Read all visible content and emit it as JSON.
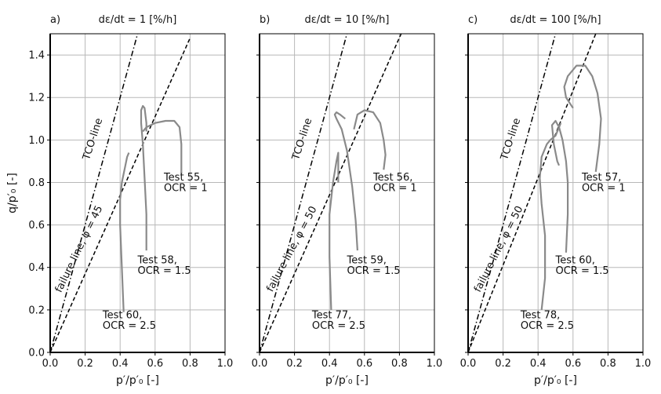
{
  "chart_data": [
    {
      "type": "line",
      "panel_label": "a)",
      "title": "dε/dt = 1 [%/h]",
      "xlabel": "p′/p′₀ [-]",
      "ylabel": "q/p′₀  [-]",
      "xlim": [
        0.0,
        1.0
      ],
      "ylim": [
        0.0,
        1.5
      ],
      "xticks": [
        "0.0",
        "0.2",
        "0.4",
        "0.6",
        "0.8",
        "1.0"
      ],
      "yticks": [
        "0.0",
        "0.2",
        "0.4",
        "0.6",
        "0.8",
        "1.0",
        "1.2",
        "1.4"
      ],
      "grid": true,
      "lines": [
        {
          "label": "TCO-line",
          "style": "dashdot",
          "x": [
            0.0,
            0.5
          ],
          "y": [
            0.0,
            1.5
          ]
        },
        {
          "label": "failure line, φ = 45",
          "style": "dashed",
          "x": [
            0.0,
            0.8
          ],
          "y": [
            0.0,
            1.48
          ]
        }
      ],
      "series": [
        {
          "name": "Test 55, OCR = 1",
          "x": [
            0.53,
            0.55,
            0.6,
            0.66,
            0.71,
            0.74,
            0.75,
            0.75,
            0.75
          ],
          "y": [
            1.04,
            1.06,
            1.08,
            1.09,
            1.09,
            1.06,
            0.98,
            0.9,
            0.84
          ]
        },
        {
          "name": "Test 58, OCR = 1.5",
          "x": [
            0.55,
            0.55,
            0.54,
            0.53,
            0.52,
            0.52,
            0.53,
            0.54,
            0.55,
            0.55
          ],
          "y": [
            0.48,
            0.65,
            0.82,
            0.98,
            1.08,
            1.14,
            1.16,
            1.15,
            1.08,
            1.04
          ]
        },
        {
          "name": "Test 60, OCR = 2.5",
          "x": [
            0.42,
            0.41,
            0.4,
            0.4,
            0.41,
            0.43,
            0.44,
            0.45
          ],
          "y": [
            0.19,
            0.4,
            0.6,
            0.72,
            0.8,
            0.88,
            0.92,
            0.94
          ]
        }
      ],
      "annotations": [
        {
          "text": "TCO-line",
          "x": 0.26,
          "y": 1.0,
          "rotation": -72
        },
        {
          "text": "failure line, φ = 45",
          "x": 0.18,
          "y": 0.48,
          "rotation": -64
        },
        {
          "text": "Test 55,",
          "x": 0.65,
          "y": 0.81
        },
        {
          "text": "OCR = 1",
          "x": 0.65,
          "y": 0.76
        },
        {
          "text": "Test 58,",
          "x": 0.5,
          "y": 0.42
        },
        {
          "text": "OCR = 1.5",
          "x": 0.5,
          "y": 0.37
        },
        {
          "text": "Test 60,",
          "x": 0.3,
          "y": 0.16
        },
        {
          "text": "OCR = 2.5",
          "x": 0.3,
          "y": 0.11
        }
      ]
    },
    {
      "type": "line",
      "panel_label": "b)",
      "title": "dε/dt = 10 [%/h]",
      "xlabel": "p′/p′₀ [-]",
      "ylabel": "",
      "xlim": [
        0.0,
        1.0
      ],
      "ylim": [
        0.0,
        1.5
      ],
      "xticks": [
        "0.0",
        "0.2",
        "0.4",
        "0.6",
        "0.8",
        "1.0"
      ],
      "yticks": [],
      "grid": true,
      "lines": [
        {
          "label": "TCO-line",
          "style": "dashdot",
          "x": [
            0.0,
            0.5
          ],
          "y": [
            0.0,
            1.5
          ]
        },
        {
          "label": "failure line, φ = 50",
          "style": "dashed",
          "x": [
            0.0,
            0.81
          ],
          "y": [
            0.0,
            1.5
          ]
        }
      ],
      "series": [
        {
          "name": "Test 56, OCR = 1",
          "x": [
            0.54,
            0.56,
            0.6,
            0.65,
            0.69,
            0.71,
            0.72,
            0.71
          ],
          "y": [
            1.05,
            1.12,
            1.14,
            1.13,
            1.08,
            1.0,
            0.93,
            0.86
          ]
        },
        {
          "name": "Test 59, OCR = 1.5",
          "x": [
            0.56,
            0.55,
            0.53,
            0.5,
            0.47,
            0.44,
            0.43,
            0.44,
            0.46,
            0.49
          ],
          "y": [
            0.48,
            0.62,
            0.78,
            0.95,
            1.05,
            1.1,
            1.12,
            1.13,
            1.12,
            1.1
          ]
        },
        {
          "name": "Test 77, OCR = 2.5",
          "x": [
            0.41,
            0.4,
            0.4,
            0.42,
            0.44,
            0.45,
            0.45
          ],
          "y": [
            0.2,
            0.45,
            0.65,
            0.8,
            0.9,
            0.94,
            0.8
          ]
        }
      ],
      "annotations": [
        {
          "text": "TCO-line",
          "x": 0.26,
          "y": 1.0,
          "rotation": -72
        },
        {
          "text": "failure line, φ = 50",
          "x": 0.2,
          "y": 0.48,
          "rotation": -62
        },
        {
          "text": "Test 56,",
          "x": 0.65,
          "y": 0.81
        },
        {
          "text": "OCR = 1",
          "x": 0.65,
          "y": 0.76
        },
        {
          "text": "Test 59,",
          "x": 0.5,
          "y": 0.42
        },
        {
          "text": "OCR = 1.5",
          "x": 0.5,
          "y": 0.37
        },
        {
          "text": "Test 77,",
          "x": 0.3,
          "y": 0.16
        },
        {
          "text": "OCR = 2.5",
          "x": 0.3,
          "y": 0.11
        }
      ]
    },
    {
      "type": "line",
      "panel_label": "c)",
      "title": "dε/dt = 100 [%/h]",
      "xlabel": "p′/p′₀ [-]",
      "ylabel": "",
      "xlim": [
        0.0,
        1.0
      ],
      "ylim": [
        0.0,
        1.5
      ],
      "xticks": [
        "0.0",
        "0.2",
        "0.4",
        "0.6",
        "0.8",
        "1.0"
      ],
      "yticks": [],
      "grid": true,
      "lines": [
        {
          "label": "TCO-line",
          "style": "dashdot",
          "x": [
            0.0,
            0.5
          ],
          "y": [
            0.0,
            1.5
          ]
        },
        {
          "label": "failure line, φ = 50",
          "style": "dashed",
          "x": [
            0.0,
            0.73
          ],
          "y": [
            0.0,
            1.5
          ]
        }
      ],
      "series": [
        {
          "name": "Test 57, OCR = 1",
          "x": [
            0.73,
            0.75,
            0.76,
            0.74,
            0.71,
            0.67,
            0.62,
            0.57,
            0.55,
            0.56,
            0.6
          ],
          "y": [
            0.85,
            0.98,
            1.1,
            1.22,
            1.3,
            1.35,
            1.35,
            1.3,
            1.25,
            1.2,
            1.15
          ]
        },
        {
          "name": "Test 60, OCR = 1.5",
          "x": [
            0.56,
            0.57,
            0.57,
            0.56,
            0.54,
            0.52,
            0.5,
            0.48,
            0.49,
            0.51,
            0.52
          ],
          "y": [
            0.47,
            0.65,
            0.8,
            0.9,
            1.0,
            1.06,
            1.09,
            1.07,
            0.98,
            0.9,
            0.88
          ]
        },
        {
          "name": "Test 78, OCR = 2.5",
          "x": [
            0.42,
            0.44,
            0.44,
            0.42,
            0.41,
            0.42,
            0.45,
            0.47,
            0.5,
            0.52,
            0.53
          ],
          "y": [
            0.2,
            0.35,
            0.55,
            0.7,
            0.82,
            0.92,
            0.98,
            1.0,
            1.02,
            1.06,
            1.08
          ]
        }
      ],
      "annotations": [
        {
          "text": "TCO-line",
          "x": 0.26,
          "y": 1.0,
          "rotation": -72
        },
        {
          "text": "failure line, φ = 50",
          "x": 0.19,
          "y": 0.48,
          "rotation": -63
        },
        {
          "text": "Test 57,",
          "x": 0.65,
          "y": 0.81
        },
        {
          "text": "OCR = 1",
          "x": 0.65,
          "y": 0.76
        },
        {
          "text": "Test 60,",
          "x": 0.5,
          "y": 0.42
        },
        {
          "text": "OCR = 1.5",
          "x": 0.5,
          "y": 0.37
        },
        {
          "text": "Test 78,",
          "x": 0.3,
          "y": 0.16
        },
        {
          "text": "OCR = 2.5",
          "x": 0.3,
          "y": 0.11
        }
      ]
    }
  ]
}
